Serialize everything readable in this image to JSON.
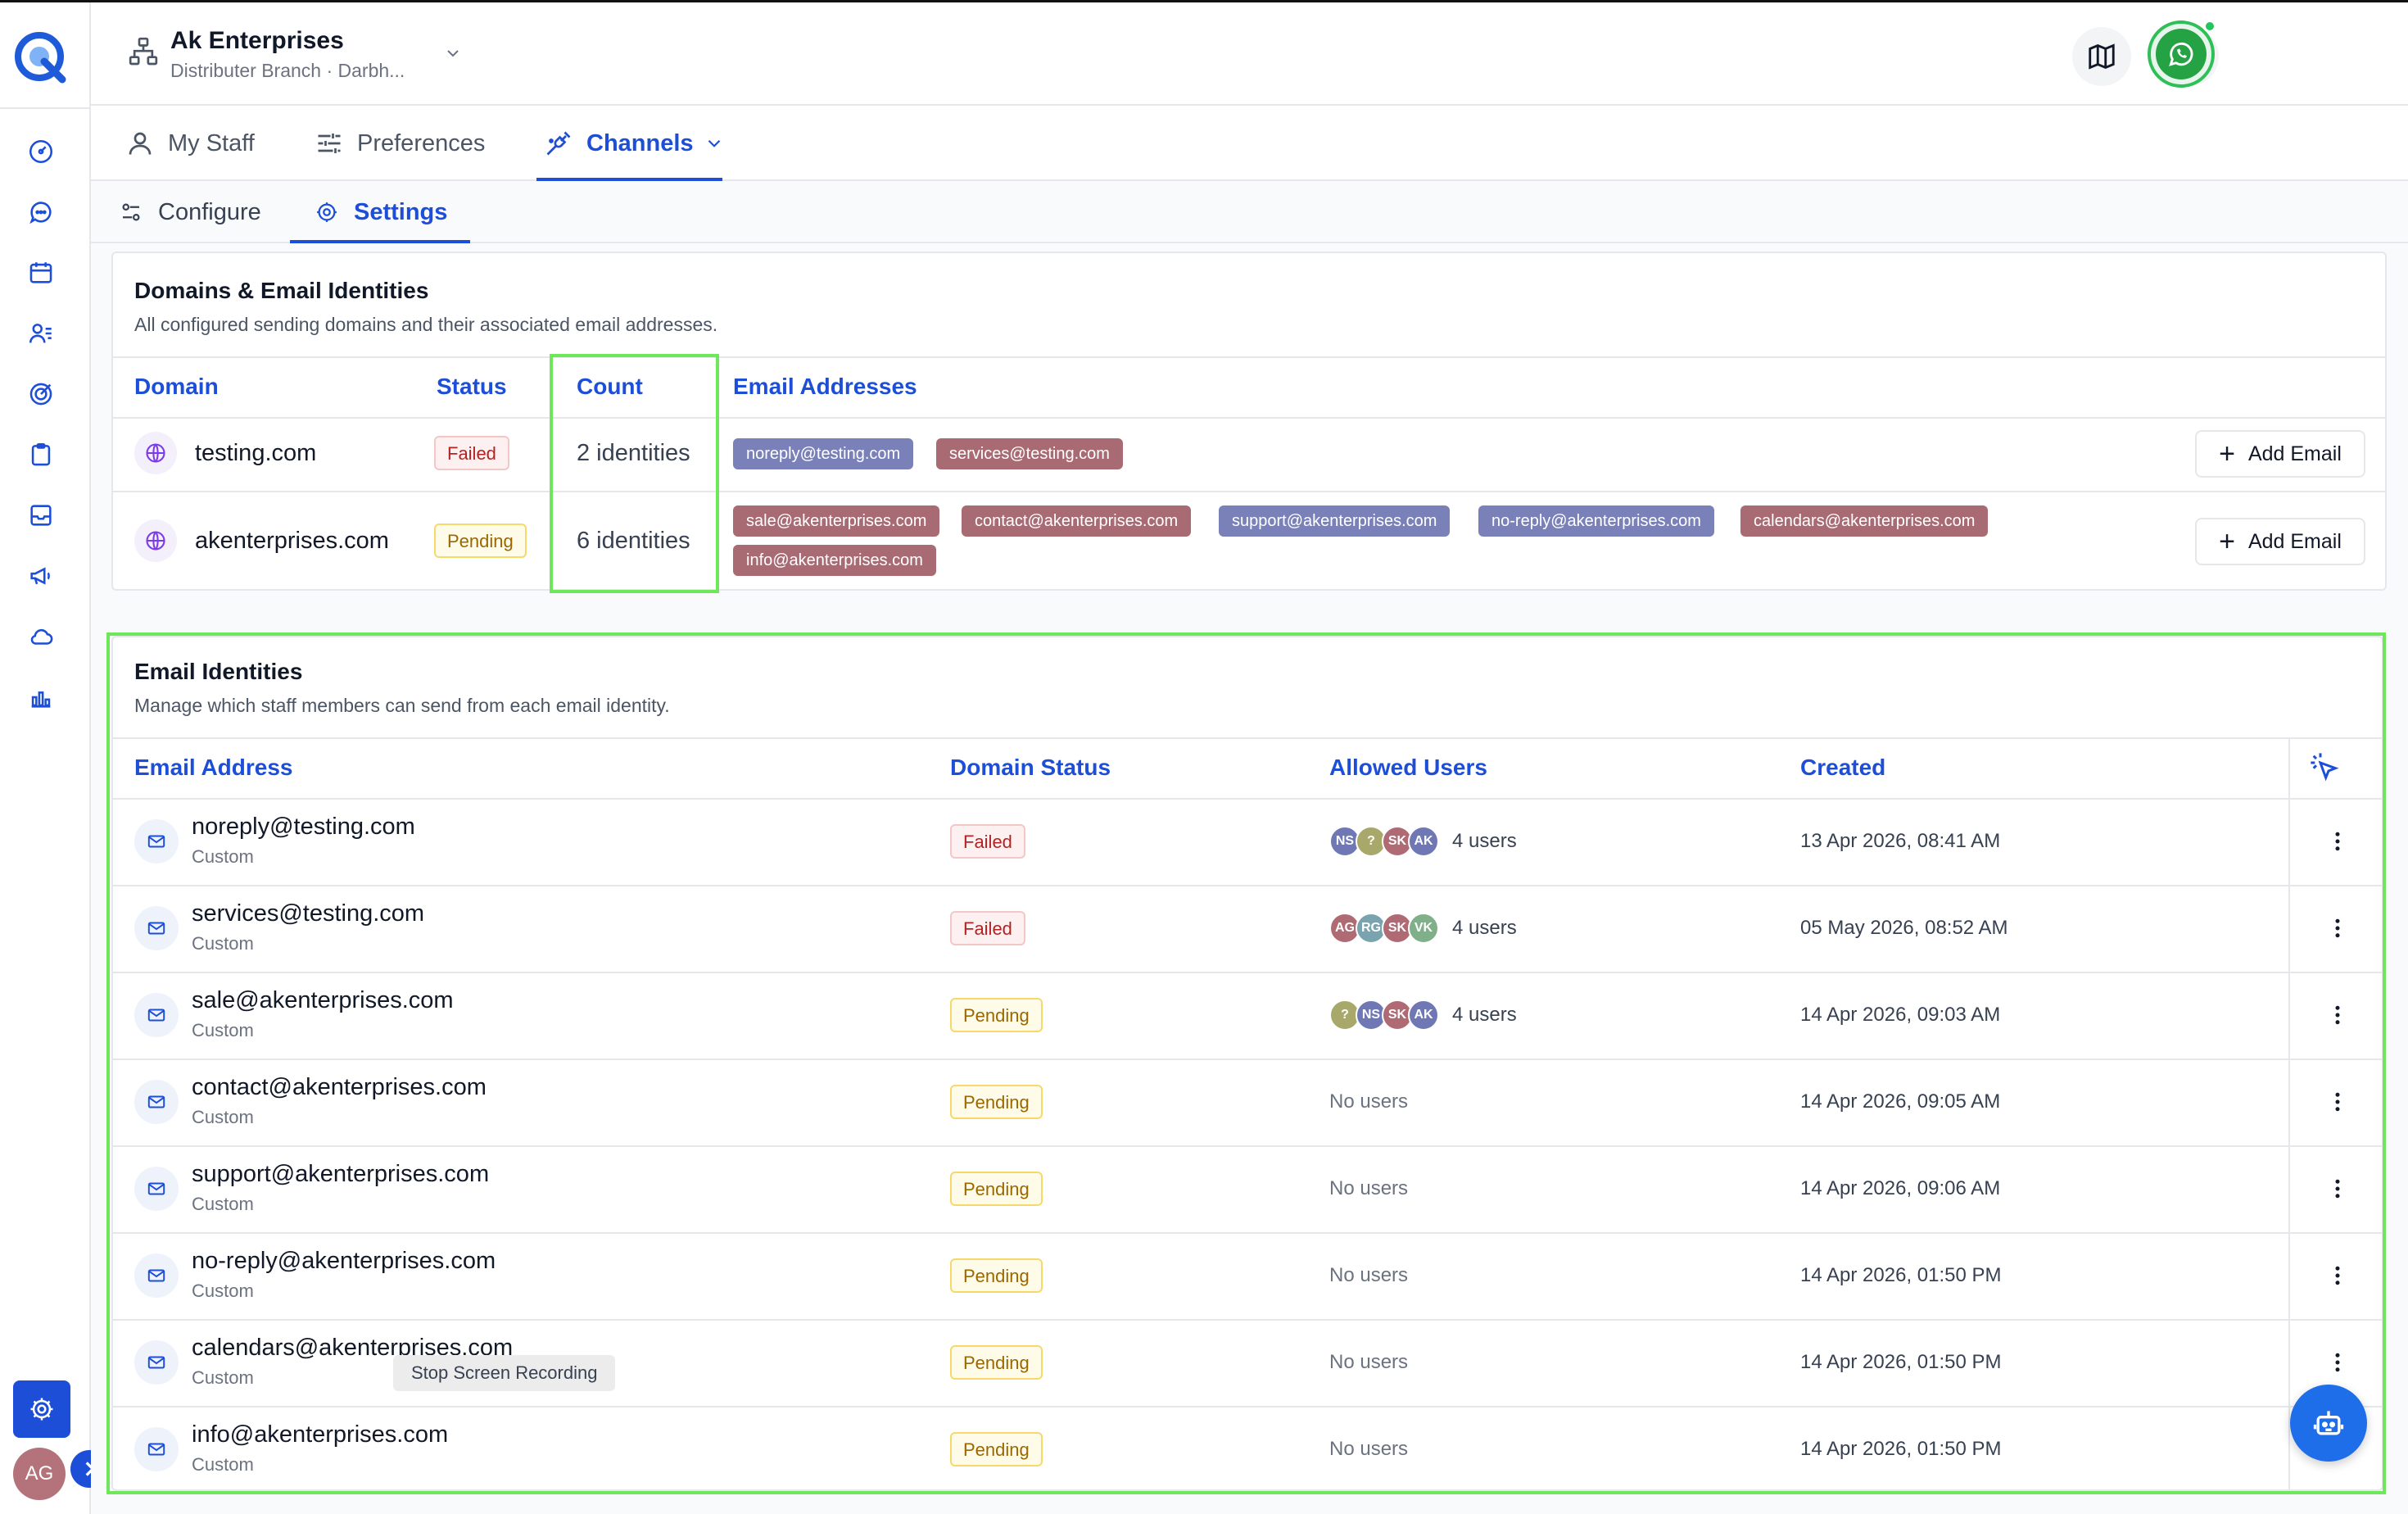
{
  "header": {
    "org_name": "Ak Enterprises",
    "org_sub": "Distributer Branch · Darbh...",
    "avatar": "AG"
  },
  "sidebar": {
    "icons": [
      "dashboard-icon",
      "chat-icon",
      "calendar-icon",
      "contacts-icon",
      "target-icon",
      "clipboard-icon",
      "inbox-icon",
      "megaphone-icon",
      "cloud-icon",
      "analytics-icon"
    ],
    "avatar": "AG"
  },
  "tabs": [
    {
      "label": "My Staff"
    },
    {
      "label": "Preferences"
    },
    {
      "label": "Channels"
    }
  ],
  "subtabs": [
    {
      "label": "Configure"
    },
    {
      "label": "Settings"
    }
  ],
  "domains_card": {
    "title": "Domains & Email Identities",
    "subtitle": "All configured sending domains and their associated email addresses.",
    "columns": [
      "Domain",
      "Status",
      "Count",
      "Email Addresses"
    ],
    "rows": [
      {
        "domain": "testing.com",
        "status": "Failed",
        "count": "2 identities",
        "emails": [
          "noreply@testing.com",
          "services@testing.com"
        ]
      },
      {
        "domain": "akenterprises.com",
        "status": "Pending",
        "count": "6 identities",
        "emails": [
          "sale@akenterprises.com",
          "contact@akenterprises.com",
          "support@akenterprises.com",
          "no-reply@akenterprises.com",
          "calendars@akenterprises.com",
          "info@akenterprises.com"
        ]
      }
    ],
    "add_email_label": "Add Email"
  },
  "identities_card": {
    "title": "Email Identities",
    "subtitle": "Manage which staff members can send from each email identity.",
    "columns": [
      "Email Address",
      "Domain Status",
      "Allowed Users",
      "Created"
    ],
    "rows": [
      {
        "email": "noreply@testing.com",
        "type": "Custom",
        "status": "Failed",
        "avatars": [
          "NS",
          "?",
          "SK",
          "AK"
        ],
        "users": "4 users",
        "created": "13 Apr 2026, 08:41 AM"
      },
      {
        "email": "services@testing.com",
        "type": "Custom",
        "status": "Failed",
        "avatars": [
          "AG",
          "RG",
          "SK",
          "VK"
        ],
        "users": "4 users",
        "created": "05 May 2026, 08:52 AM"
      },
      {
        "email": "sale@akenterprises.com",
        "type": "Custom",
        "status": "Pending",
        "avatars": [
          "?",
          "NS",
          "SK",
          "AK"
        ],
        "users": "4 users",
        "created": "14 Apr 2026, 09:03 AM"
      },
      {
        "email": "contact@akenterprises.com",
        "type": "Custom",
        "status": "Pending",
        "avatars": [],
        "users": "No users",
        "created": "14 Apr 2026, 09:05 AM"
      },
      {
        "email": "support@akenterprises.com",
        "type": "Custom",
        "status": "Pending",
        "avatars": [],
        "users": "No users",
        "created": "14 Apr 2026, 09:06 AM"
      },
      {
        "email": "no-reply@akenterprises.com",
        "type": "Custom",
        "status": "Pending",
        "avatars": [],
        "users": "No users",
        "created": "14 Apr 2026, 01:50 PM"
      },
      {
        "email": "calendars@akenterprises.com",
        "type": "Custom",
        "status": "Pending",
        "avatars": [],
        "users": "No users",
        "created": "14 Apr 2026, 01:50 PM"
      },
      {
        "email": "info@akenterprises.com",
        "type": "Custom",
        "status": "Pending",
        "avatars": [],
        "users": "No users",
        "created": "14 Apr 2026, 01:50 PM"
      }
    ]
  },
  "tooltip": "Stop Screen Recording",
  "colors": {
    "accent": "#1d4ed8",
    "highlight": "#6ee85a",
    "chip_blue": "#7a80b8",
    "chip_rose": "#a86b73"
  }
}
